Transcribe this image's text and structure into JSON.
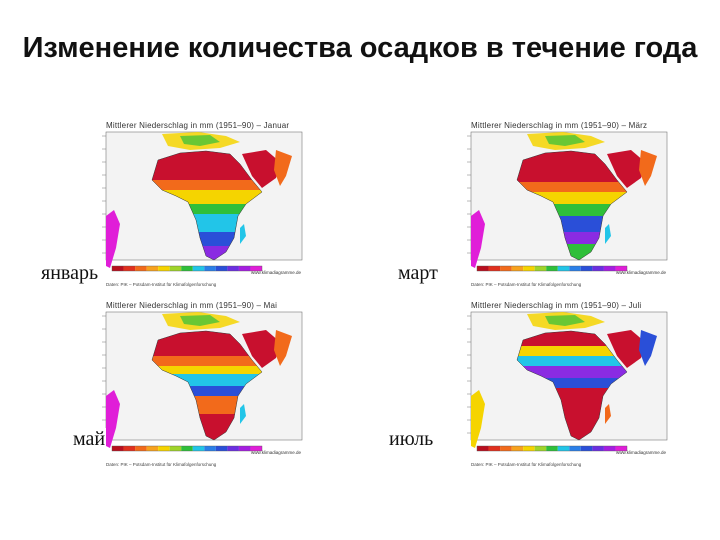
{
  "slide": {
    "title": "Изменение количества осадков в течение года"
  },
  "panels": [
    {
      "month_label": "январь",
      "header": "Mittlerer Niederschlag in mm (1951–90) – Januar",
      "credit": "www.klimadiagramme.de",
      "source": "Daten: PIK – Potsdam-Institut für Klimafolgenforschung"
    },
    {
      "month_label": "март",
      "header": "Mittlerer Niederschlag in mm (1951–90) – März",
      "credit": "www.klimadiagramme.de",
      "source": "Daten: PIK – Potsdam-Institut für Klimafolgenforschung"
    },
    {
      "month_label": "май",
      "header": "Mittlerer Niederschlag in mm (1951–90) – Mai",
      "credit": "www.klimadiagramme.de",
      "source": "Daten: PIK – Potsdam-Institut für Klimafolgenforschung"
    },
    {
      "month_label": "июль",
      "header": "Mittlerer Niederschlag in mm (1951–90) – Juli",
      "credit": "www.klimadiagramme.de",
      "source": "Daten: PIK – Potsdam-Institut für Klimafolgenforschung"
    }
  ],
  "colors": {
    "dry_red": "#c8102e",
    "orange": "#f26a1b",
    "yellow": "#f5d400",
    "green": "#2fbf3a",
    "cyan": "#22c5e8",
    "blue": "#2a4fd8",
    "purple": "#8a2be2",
    "magenta": "#e01ed8"
  },
  "legend_scale": [
    "#b80f1f",
    "#e0301e",
    "#f26a1b",
    "#f7a21e",
    "#f5d400",
    "#9fd42a",
    "#2fbf3a",
    "#22c5e8",
    "#2a7fe8",
    "#2a4fd8",
    "#6b2fe0",
    "#a51ee0",
    "#e01ed8"
  ]
}
